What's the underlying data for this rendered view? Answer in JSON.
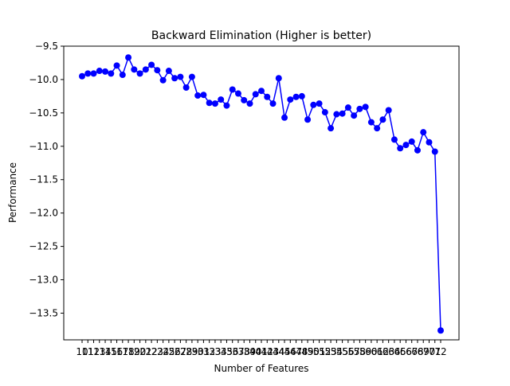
{
  "chart_data": {
    "type": "line",
    "title": "Backward Elimination (Higher is better)",
    "xlabel": "Number of Features",
    "ylabel": "Performance",
    "grid": false,
    "legend": "none",
    "color": "#0000ff",
    "marker": "circle",
    "ylim": [
      -13.9,
      -9.5
    ],
    "yticks": [
      -9.5,
      -10.0,
      -10.5,
      -11.0,
      -11.5,
      -12.0,
      -12.5,
      -13.0,
      -13.5
    ],
    "ytick_labels": [
      "−9.5",
      "−10.0",
      "−10.5",
      "−11.0",
      "−11.5",
      "−12.0",
      "−12.5",
      "−13.0",
      "−13.5"
    ],
    "x": [
      10,
      11,
      12,
      13,
      14,
      15,
      16,
      17,
      18,
      19,
      20,
      21,
      22,
      23,
      24,
      25,
      26,
      27,
      28,
      29,
      30,
      31,
      32,
      33,
      34,
      35,
      36,
      37,
      38,
      39,
      40,
      41,
      42,
      43,
      44,
      45,
      46,
      47,
      48,
      49,
      50,
      51,
      52,
      53,
      54,
      55,
      56,
      57,
      58,
      59,
      60,
      61,
      62,
      63,
      64,
      65,
      66,
      67,
      68,
      69,
      70,
      71,
      72
    ],
    "y": [
      -9.95,
      -9.91,
      -9.91,
      -9.87,
      -9.88,
      -9.91,
      -9.79,
      -9.93,
      -9.67,
      -9.85,
      -9.91,
      -9.85,
      -9.78,
      -9.86,
      -10.01,
      -9.87,
      -9.98,
      -9.96,
      -10.12,
      -9.96,
      -10.24,
      -10.23,
      -10.35,
      -10.36,
      -10.3,
      -10.39,
      -10.15,
      -10.21,
      -10.31,
      -10.36,
      -10.22,
      -10.17,
      -10.26,
      -10.36,
      -9.98,
      -10.57,
      -10.3,
      -10.26,
      -10.25,
      -10.6,
      -10.38,
      -10.36,
      -10.49,
      -10.73,
      -10.52,
      -10.51,
      -10.42,
      -10.54,
      -10.44,
      -10.41,
      -10.64,
      -10.73,
      -10.6,
      -10.46,
      -10.9,
      -11.03,
      -10.98,
      -10.93,
      -11.06,
      -10.79,
      -10.94,
      -11.08,
      -13.76
    ]
  }
}
